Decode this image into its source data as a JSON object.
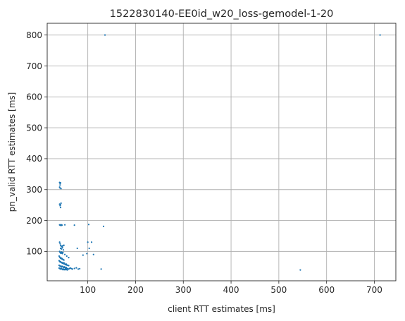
{
  "chart_data": {
    "type": "scatter",
    "title": "1522830140-EE0id_w20_loss-gemodel-1-20",
    "xlabel": "client RTT estimates [ms]",
    "ylabel": "pn_valid RTT estimates [ms]",
    "xlim": [
      15,
      745
    ],
    "ylim": [
      5,
      838
    ],
    "xticks": [
      100,
      200,
      300,
      400,
      500,
      600,
      700
    ],
    "yticks": [
      100,
      200,
      300,
      400,
      500,
      600,
      700,
      800
    ],
    "grid": true,
    "marker_color": "#1f77b4",
    "series": [
      {
        "points": [
          [
            136,
            800
          ],
          [
            712,
            800
          ],
          [
            545,
            40
          ],
          [
            41,
            323
          ],
          [
            42,
            320
          ],
          [
            42,
            315
          ],
          [
            43,
            322
          ],
          [
            41,
            308
          ],
          [
            42,
            305
          ],
          [
            44,
            303
          ],
          [
            41,
            253
          ],
          [
            42,
            248
          ],
          [
            43,
            251
          ],
          [
            44,
            256
          ],
          [
            43,
            242
          ],
          [
            41,
            186
          ],
          [
            42,
            185
          ],
          [
            43,
            186
          ],
          [
            44,
            184
          ],
          [
            45,
            186
          ],
          [
            46,
            185
          ],
          [
            52,
            186
          ],
          [
            72,
            185
          ],
          [
            102,
            187
          ],
          [
            133,
            181
          ],
          [
            41,
            130
          ],
          [
            42,
            125
          ],
          [
            43,
            120
          ],
          [
            44,
            118
          ],
          [
            45,
            116
          ],
          [
            46,
            115
          ],
          [
            47,
            117
          ],
          [
            48,
            119
          ],
          [
            50,
            120
          ],
          [
            43,
            110
          ],
          [
            45,
            108
          ],
          [
            47,
            112
          ],
          [
            49,
            105
          ],
          [
            41,
            100
          ],
          [
            42,
            97
          ],
          [
            43,
            95
          ],
          [
            44,
            94
          ],
          [
            45,
            98
          ],
          [
            46,
            96
          ],
          [
            47,
            93
          ],
          [
            48,
            97
          ],
          [
            52,
            90
          ],
          [
            56,
            85
          ],
          [
            60,
            80
          ],
          [
            40,
            85
          ],
          [
            41,
            82
          ],
          [
            42,
            80
          ],
          [
            43,
            78
          ],
          [
            44,
            79
          ],
          [
            45,
            76
          ],
          [
            46,
            77
          ],
          [
            47,
            75
          ],
          [
            48,
            74
          ],
          [
            49,
            73
          ],
          [
            50,
            72
          ],
          [
            40,
            70
          ],
          [
            41,
            68
          ],
          [
            42,
            66
          ],
          [
            43,
            67
          ],
          [
            44,
            65
          ],
          [
            45,
            64
          ],
          [
            46,
            63
          ],
          [
            47,
            62
          ],
          [
            48,
            64
          ],
          [
            49,
            61
          ],
          [
            50,
            60
          ],
          [
            51,
            62
          ],
          [
            52,
            59
          ],
          [
            53,
            58
          ],
          [
            54,
            57
          ],
          [
            55,
            59
          ],
          [
            56,
            56
          ],
          [
            58,
            55
          ],
          [
            60,
            54
          ],
          [
            40,
            55
          ],
          [
            41,
            54
          ],
          [
            42,
            53
          ],
          [
            43,
            52
          ],
          [
            44,
            51
          ],
          [
            45,
            50
          ],
          [
            46,
            52
          ],
          [
            47,
            51
          ],
          [
            48,
            50
          ],
          [
            49,
            49
          ],
          [
            50,
            48
          ],
          [
            51,
            50
          ],
          [
            52,
            49
          ],
          [
            53,
            47
          ],
          [
            54,
            46
          ],
          [
            55,
            48
          ],
          [
            56,
            45
          ],
          [
            58,
            44
          ],
          [
            60,
            43
          ],
          [
            62,
            45
          ],
          [
            64,
            46
          ],
          [
            66,
            44
          ],
          [
            68,
            43
          ],
          [
            40,
            46
          ],
          [
            41,
            45
          ],
          [
            42,
            44
          ],
          [
            43,
            43
          ],
          [
            44,
            45
          ],
          [
            45,
            44
          ],
          [
            46,
            43
          ],
          [
            47,
            42
          ],
          [
            48,
            41
          ],
          [
            49,
            43
          ],
          [
            50,
            42
          ],
          [
            51,
            41
          ],
          [
            52,
            42
          ],
          [
            53,
            43
          ],
          [
            54,
            41
          ],
          [
            55,
            42
          ],
          [
            57,
            40
          ],
          [
            72,
            45
          ],
          [
            76,
            47
          ],
          [
            80,
            43
          ],
          [
            83,
            44
          ],
          [
            78,
            110
          ],
          [
            90,
            88
          ],
          [
            98,
            93
          ],
          [
            100,
            130
          ],
          [
            103,
            110
          ],
          [
            108,
            130
          ],
          [
            128,
            43
          ],
          [
            112,
            90
          ]
        ]
      }
    ]
  }
}
